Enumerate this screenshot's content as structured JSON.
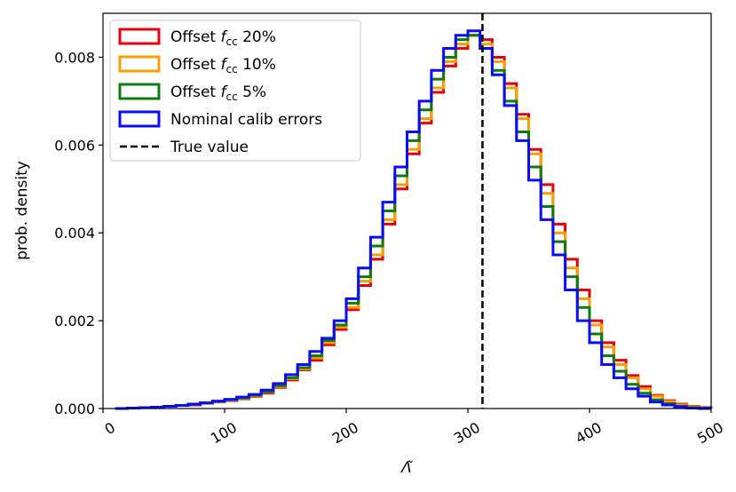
{
  "chart_data": {
    "type": "histogram",
    "xlabel": "Λ̃",
    "ylabel": "prob. density",
    "xlim": [
      0,
      500
    ],
    "ylim": [
      0,
      0.009
    ],
    "xticks": [
      "0",
      "100",
      "200",
      "300",
      "400",
      "500"
    ],
    "yticks": [
      "0.000",
      "0.002",
      "0.004",
      "0.006",
      "0.008"
    ],
    "x_tick_rotation": 30,
    "grid": false,
    "legend_placement": "top-left",
    "true_value": 312,
    "series": [
      {
        "name": "Offset f_cc 20%",
        "legend_label": {
          "prefix": "Offset ",
          "symbol": "f",
          "sub": "cc",
          "suffix": " 20%"
        },
        "color": "#e8000b",
        "bin_start": 10,
        "bin_width": 10,
        "values": [
          0,
          1e-05,
          2e-05,
          3e-05,
          5e-05,
          7e-05,
          8e-05,
          0.00012,
          0.00015,
          0.00018,
          0.00022,
          0.00027,
          0.00035,
          0.00048,
          0.00065,
          0.00088,
          0.0011,
          0.00145,
          0.0018,
          0.00225,
          0.0028,
          0.0034,
          0.0042,
          0.005,
          0.0058,
          0.0065,
          0.0072,
          0.0078,
          0.0082,
          0.0085,
          0.0084,
          0.008,
          0.0074,
          0.0067,
          0.0059,
          0.0051,
          0.0042,
          0.0034,
          0.0027,
          0.002,
          0.0015,
          0.0011,
          0.00075,
          0.0005,
          0.0003,
          0.00018,
          0.0001,
          5e-05,
          2e-05
        ]
      },
      {
        "name": "Offset f_cc 10%",
        "legend_label": {
          "prefix": "Offset ",
          "symbol": "f",
          "sub": "cc",
          "suffix": " 10%"
        },
        "color": "#f5a000",
        "bin_start": 10,
        "bin_width": 10,
        "values": [
          0,
          1e-05,
          2e-05,
          3e-05,
          5e-05,
          7e-05,
          9e-05,
          0.00012,
          0.00015,
          0.00019,
          0.00023,
          0.00028,
          0.00037,
          0.0005,
          0.00068,
          0.0009,
          0.00115,
          0.0015,
          0.00185,
          0.0023,
          0.0029,
          0.0035,
          0.0043,
          0.0051,
          0.0059,
          0.0066,
          0.0073,
          0.0079,
          0.0083,
          0.0085,
          0.0083,
          0.0079,
          0.0073,
          0.0066,
          0.0058,
          0.0049,
          0.004,
          0.0032,
          0.0025,
          0.0019,
          0.0014,
          0.001,
          0.0007,
          0.00045,
          0.00028,
          0.00016,
          8e-05,
          4e-05,
          1e-05
        ]
      },
      {
        "name": "Offset f_cc 5%",
        "legend_label": {
          "prefix": "Offset ",
          "symbol": "f",
          "sub": "cc",
          "suffix": " 5%"
        },
        "color": "#0f7a0f",
        "bin_start": 10,
        "bin_width": 10,
        "values": [
          0,
          1e-05,
          2e-05,
          3e-05,
          5e-05,
          7e-05,
          9e-05,
          0.00013,
          0.00016,
          0.0002,
          0.00024,
          0.0003,
          0.00038,
          0.00052,
          0.0007,
          0.00093,
          0.0012,
          0.00155,
          0.0019,
          0.0024,
          0.003,
          0.0037,
          0.0045,
          0.0053,
          0.0061,
          0.0068,
          0.0075,
          0.008,
          0.0084,
          0.0085,
          0.0082,
          0.0077,
          0.007,
          0.0063,
          0.0055,
          0.0046,
          0.0038,
          0.003,
          0.0023,
          0.0017,
          0.0012,
          0.00085,
          0.00055,
          0.00035,
          0.0002,
          0.00011,
          5e-05,
          2e-05,
          1e-05
        ]
      },
      {
        "name": "Nominal calib errors",
        "color": "#0a0aff",
        "bin_start": 10,
        "bin_width": 10,
        "values": [
          0,
          1e-05,
          2e-05,
          3e-05,
          5e-05,
          7e-05,
          0.0001,
          0.00013,
          0.00017,
          0.00021,
          0.00026,
          0.00032,
          0.00042,
          0.00057,
          0.00077,
          0.001,
          0.0013,
          0.0016,
          0.002,
          0.0025,
          0.0032,
          0.0039,
          0.0047,
          0.0055,
          0.0063,
          0.007,
          0.0077,
          0.0082,
          0.0085,
          0.0086,
          0.0082,
          0.0076,
          0.0069,
          0.0061,
          0.0052,
          0.0043,
          0.0035,
          0.0027,
          0.002,
          0.0015,
          0.001,
          0.0007,
          0.00045,
          0.00028,
          0.00015,
          8e-05,
          4e-05,
          1e-05,
          0
        ]
      }
    ],
    "true_value_label": "True value"
  }
}
